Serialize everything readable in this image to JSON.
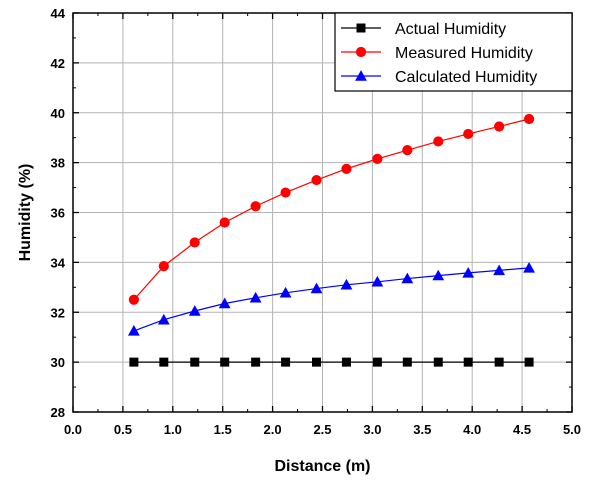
{
  "chart_data": {
    "type": "line",
    "xlabel": "Distance (m)",
    "ylabel": "Humidity (%)",
    "xlim": [
      0.0,
      5.0
    ],
    "ylim": [
      28,
      44
    ],
    "xticks": [
      "0.0",
      "0.5",
      "1.0",
      "1.5",
      "2.0",
      "2.5",
      "3.0",
      "3.5",
      "4.0",
      "4.5",
      "5.0"
    ],
    "yticks": [
      "28",
      "30",
      "32",
      "34",
      "36",
      "38",
      "40",
      "42",
      "44"
    ],
    "grid": true,
    "legend_position": "top-right",
    "x": [
      0.61,
      0.91,
      1.22,
      1.52,
      1.83,
      2.13,
      2.44,
      2.74,
      3.05,
      3.35,
      3.66,
      3.96,
      4.27,
      4.57
    ],
    "series": [
      {
        "name": "Actual Humidity",
        "color": "#000000",
        "marker": "square",
        "values": [
          30,
          30,
          30,
          30,
          30,
          30,
          30,
          30,
          30,
          30,
          30,
          30,
          30,
          30
        ]
      },
      {
        "name": "Measured Humidity",
        "color": "#ff0000",
        "marker": "circle",
        "values": [
          32.5,
          33.85,
          34.8,
          35.6,
          36.25,
          36.8,
          37.3,
          37.75,
          38.15,
          38.5,
          38.85,
          39.15,
          39.45,
          39.75
        ]
      },
      {
        "name": "Calculated Humidity",
        "color": "#0000ff",
        "marker": "triangle",
        "values": [
          31.25,
          31.7,
          32.05,
          32.35,
          32.58,
          32.78,
          32.95,
          33.1,
          33.22,
          33.35,
          33.47,
          33.58,
          33.68,
          33.78
        ]
      }
    ]
  }
}
